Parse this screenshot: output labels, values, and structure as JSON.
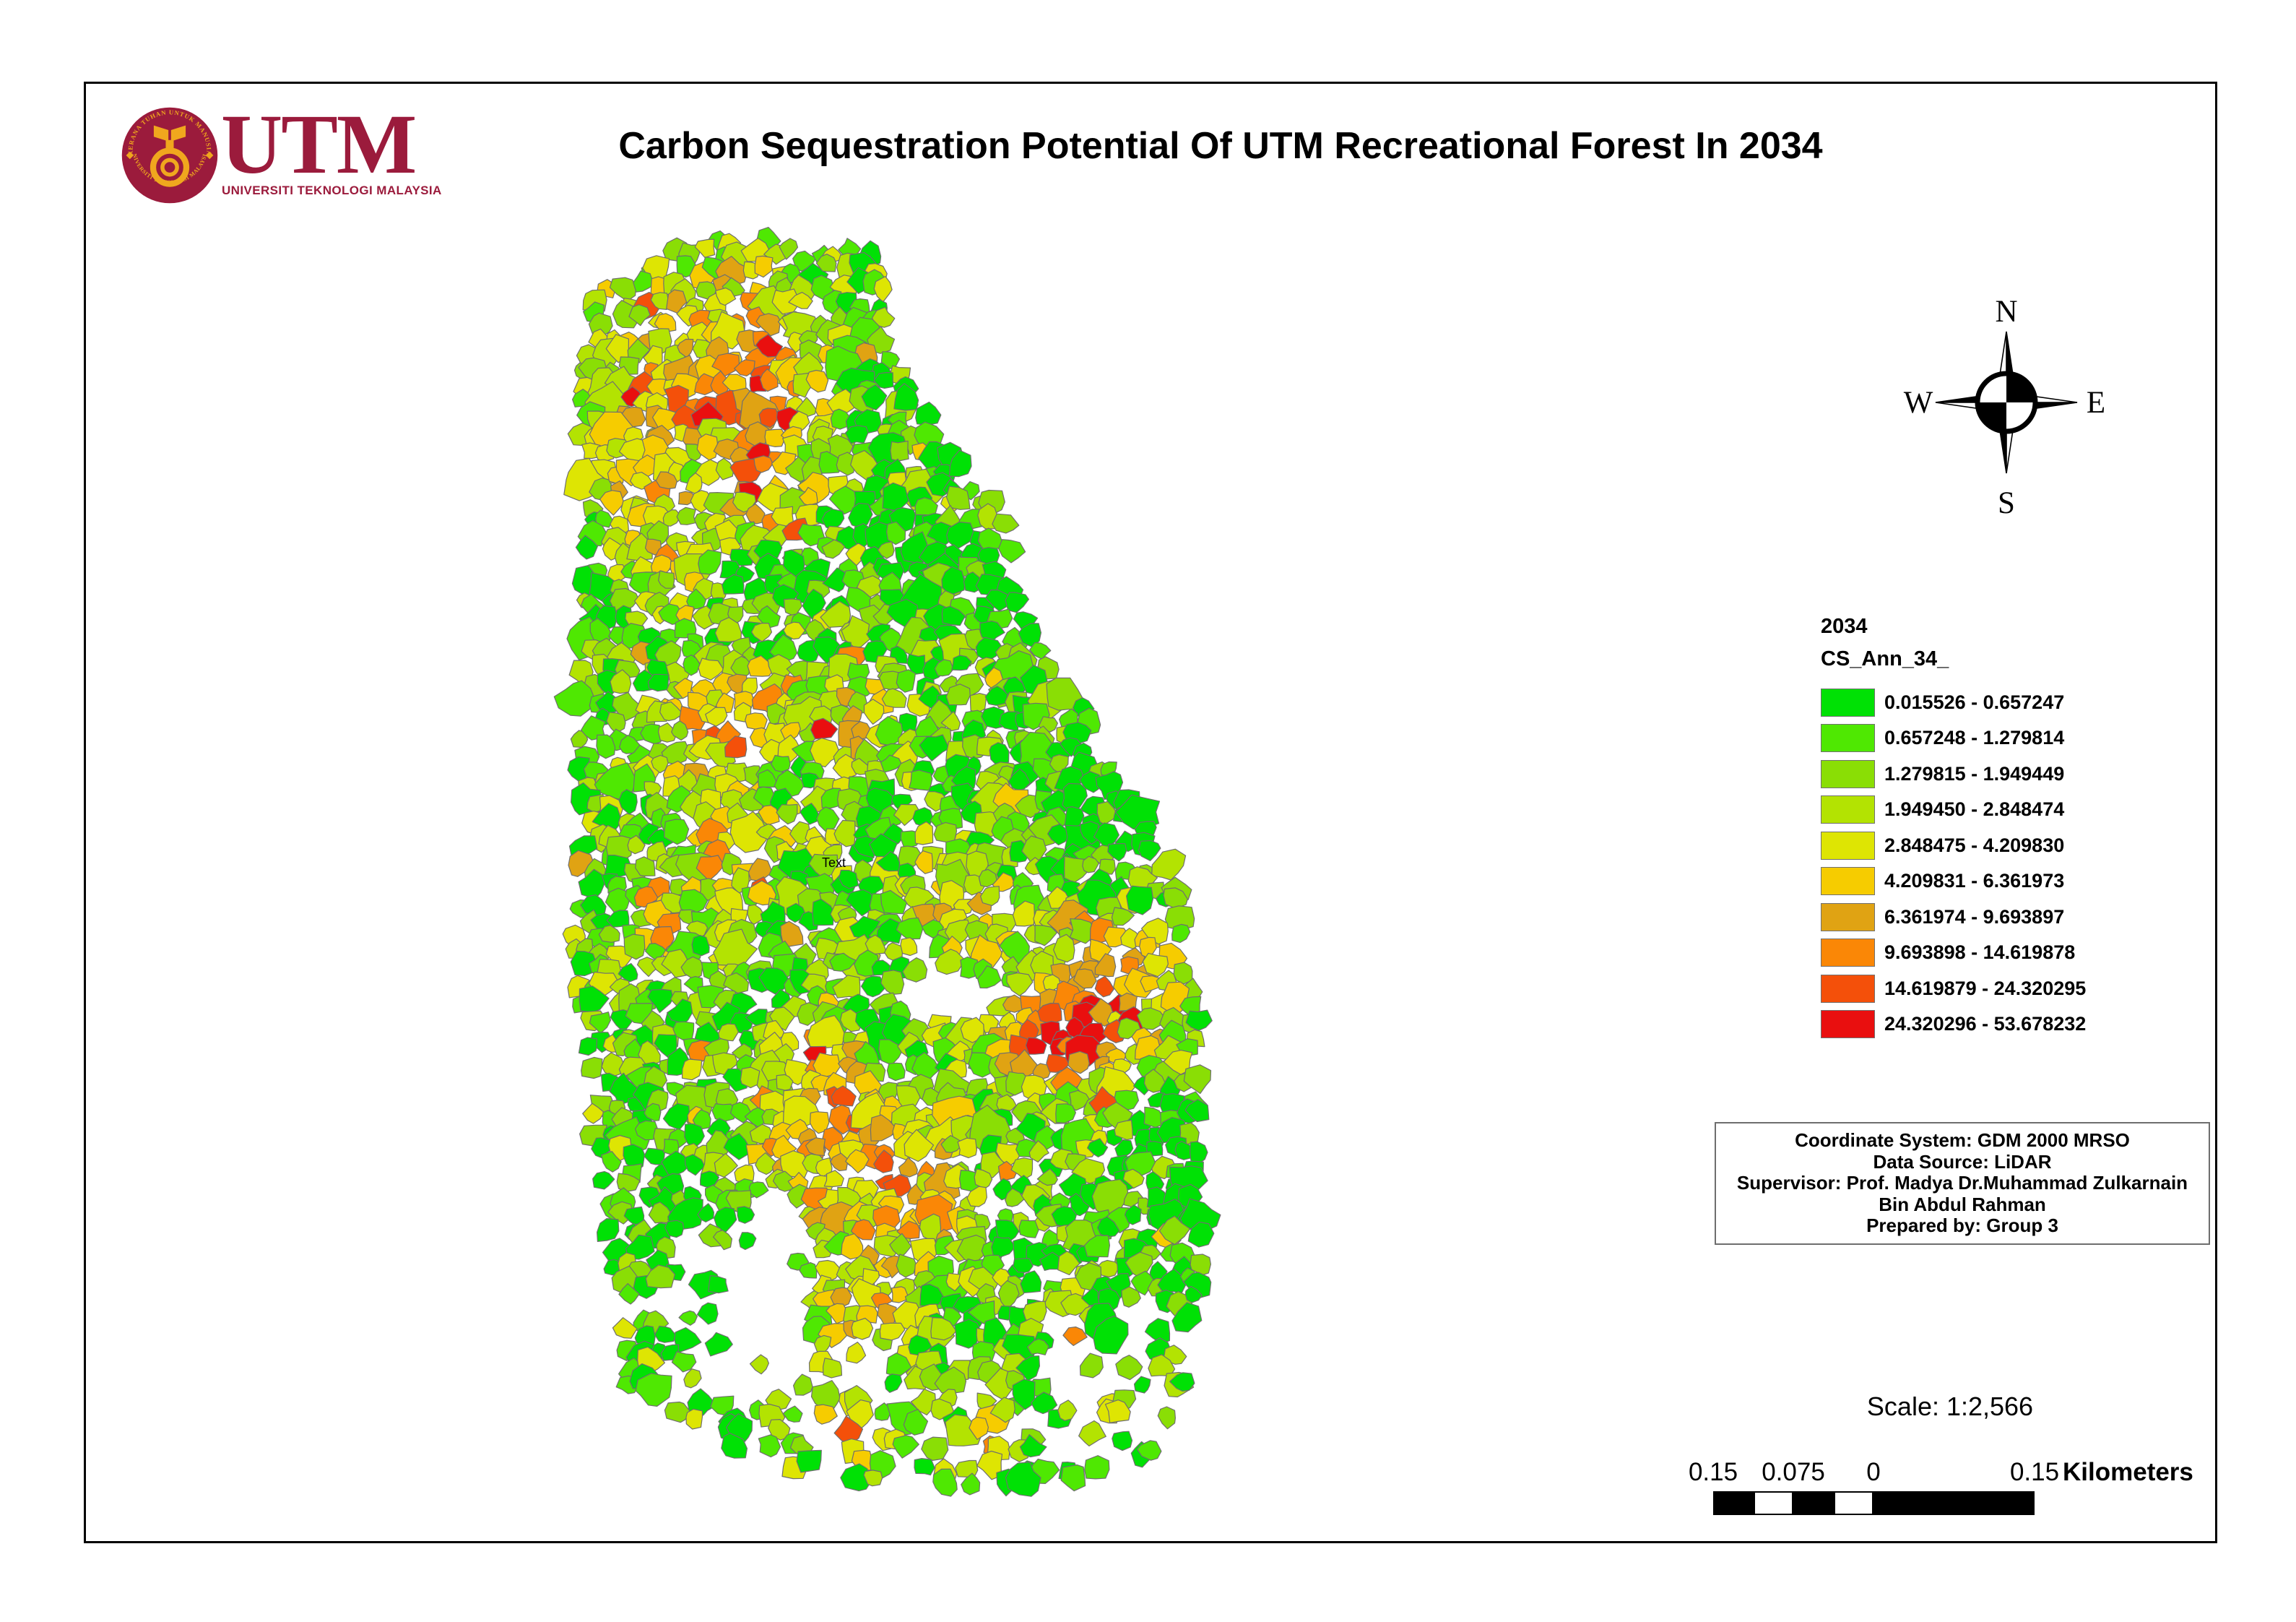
{
  "header": {
    "title": "Carbon Sequestration Potential Of UTM Recreational Forest In 2034"
  },
  "logo": {
    "acronym": "UTM",
    "name_line": "UNIVERSITI TEKNOLOGI MALAYSIA",
    "seal_text_top": "KERANA TUHAN UNTUK MANUSIA",
    "seal_text_bottom": "UNIVERSITI TEKNOLOGI MALAYSIA",
    "maroon": "#9B1B3C",
    "gold": "#F0A71E"
  },
  "compass": {
    "north": "N",
    "east": "E",
    "south": "S",
    "west": "W"
  },
  "legend": {
    "year_label": "2034",
    "field_label": "CS_Ann_34_",
    "classes": [
      {
        "label": "0.015526 - 0.657247",
        "color": "#00E105"
      },
      {
        "label": "0.657248 - 1.279814",
        "color": "#4FE802"
      },
      {
        "label": "1.279815 - 1.949449",
        "color": "#8ADE05"
      },
      {
        "label": "1.949450 - 2.848474",
        "color": "#B3E302"
      },
      {
        "label": "2.848475 - 4.209830",
        "color": "#DEE503"
      },
      {
        "label": "4.209831 - 6.361973",
        "color": "#F6CC00"
      },
      {
        "label": "6.361974 - 9.693897",
        "color": "#E0A313"
      },
      {
        "label": "9.693898 - 14.619878",
        "color": "#FA8706"
      },
      {
        "label": "14.619879 - 24.320295",
        "color": "#F4500A"
      },
      {
        "label": "24.320296 - 53.678232",
        "color": "#E90F0F"
      }
    ]
  },
  "info_box": {
    "lines": [
      "Coordinate System: GDM 2000 MRSO",
      "Data Source: LiDAR",
      "Supervisor: Prof. Madya Dr.Muhammad Zulkarnain",
      "Bin Abdul Rahman",
      "Prepared by: Group 3"
    ]
  },
  "scale": {
    "text": "Scale: 1:2,566",
    "bar_labels": [
      "0.15",
      "0.075",
      "0",
      "0.15"
    ],
    "bar_label_x": [
      2372,
      2483,
      2594,
      2817
    ],
    "bar_segments": [
      [
        56,
        "#000000"
      ],
      [
        55,
        "#ffffff"
      ],
      [
        56,
        "#000000"
      ],
      [
        55,
        "#ffffff"
      ],
      [
        223,
        "#000000"
      ]
    ],
    "unit_label": "Kilometers"
  },
  "map": {
    "annotation": "Text",
    "stroke": "#6F6F6F",
    "seed": 11,
    "spacing": 23,
    "jitter": 9,
    "dropout": 0.03,
    "outline": [
      [
        830,
        400
      ],
      [
        850,
        372
      ],
      [
        872,
        380
      ],
      [
        895,
        355
      ],
      [
        920,
        362
      ],
      [
        948,
        338
      ],
      [
        972,
        346
      ],
      [
        998,
        328
      ],
      [
        1022,
        340
      ],
      [
        1046,
        320
      ],
      [
        1072,
        334
      ],
      [
        1098,
        324
      ],
      [
        1124,
        338
      ],
      [
        1150,
        328
      ],
      [
        1175,
        342
      ],
      [
        1200,
        334
      ],
      [
        1208,
        362
      ],
      [
        1222,
        392
      ],
      [
        1230,
        430
      ],
      [
        1244,
        468
      ],
      [
        1240,
        508
      ],
      [
        1266,
        545
      ],
      [
        1288,
        580
      ],
      [
        1310,
        610
      ],
      [
        1338,
        640
      ],
      [
        1360,
        662
      ],
      [
        1378,
        700
      ],
      [
        1398,
        735
      ],
      [
        1410,
        790
      ],
      [
        1432,
        848
      ],
      [
        1428,
        872
      ],
      [
        1467,
        920
      ],
      [
        1500,
        968
      ],
      [
        1522,
        1020
      ],
      [
        1545,
        1078
      ],
      [
        1585,
        1132
      ],
      [
        1615,
        1190
      ],
      [
        1635,
        1248
      ],
      [
        1645,
        1300
      ],
      [
        1652,
        1352
      ],
      [
        1662,
        1404
      ],
      [
        1668,
        1460
      ],
      [
        1672,
        1520
      ],
      [
        1666,
        1578
      ],
      [
        1660,
        1640
      ],
      [
        1665,
        1700
      ],
      [
        1672,
        1755
      ],
      [
        1662,
        1810
      ],
      [
        1650,
        1855
      ],
      [
        1660,
        1900
      ],
      [
        1630,
        1942
      ],
      [
        1610,
        1990
      ],
      [
        1585,
        2035
      ],
      [
        1555,
        2012
      ],
      [
        1530,
        2062
      ],
      [
        1505,
        2032
      ],
      [
        1478,
        2068
      ],
      [
        1448,
        2040
      ],
      [
        1418,
        2072
      ],
      [
        1385,
        2046
      ],
      [
        1352,
        2076
      ],
      [
        1320,
        2048
      ],
      [
        1290,
        2072
      ],
      [
        1258,
        2050
      ],
      [
        1228,
        2070
      ],
      [
        1196,
        2040
      ],
      [
        1168,
        2066
      ],
      [
        1140,
        2030
      ],
      [
        1112,
        2056
      ],
      [
        1085,
        2020
      ],
      [
        1058,
        2042
      ],
      [
        1035,
        2000
      ],
      [
        1008,
        2016
      ],
      [
        985,
        1982
      ],
      [
        958,
        1996
      ],
      [
        935,
        1958
      ],
      [
        910,
        1968
      ],
      [
        890,
        1936
      ],
      [
        872,
        1942
      ],
      [
        860,
        1906
      ],
      [
        868,
        1870
      ],
      [
        848,
        1840
      ],
      [
        862,
        1800
      ],
      [
        842,
        1768
      ],
      [
        855,
        1735
      ],
      [
        838,
        1700
      ],
      [
        846,
        1668
      ],
      [
        830,
        1636
      ],
      [
        822,
        1592
      ],
      [
        812,
        1540
      ],
      [
        816,
        1488
      ],
      [
        806,
        1436
      ],
      [
        800,
        1384
      ],
      [
        795,
        1330
      ],
      [
        792,
        1276
      ],
      [
        795,
        1222
      ],
      [
        799,
        1168
      ],
      [
        803,
        1114
      ],
      [
        797,
        1060
      ],
      [
        801,
        1006
      ],
      [
        794,
        952
      ],
      [
        800,
        898
      ],
      [
        796,
        844
      ],
      [
        803,
        790
      ],
      [
        798,
        736
      ],
      [
        804,
        682
      ],
      [
        799,
        628
      ],
      [
        806,
        574
      ],
      [
        801,
        520
      ],
      [
        812,
        478
      ],
      [
        806,
        438
      ],
      [
        818,
        415
      ]
    ],
    "holes": [
      [
        1308,
        1378,
        72,
        34
      ],
      [
        1048,
        1795,
        55,
        70
      ],
      [
        1078,
        1695,
        38,
        42
      ]
    ],
    "sparse_zones": [
      [
        960,
        1720,
        1120,
        1935,
        0.72
      ],
      [
        1440,
        1800,
        1700,
        2075,
        0.58
      ],
      [
        900,
        1850,
        1255,
        2075,
        0.42
      ],
      [
        1255,
        1905,
        1460,
        2080,
        0.38
      ],
      [
        828,
        1640,
        975,
        1850,
        0.22
      ]
    ],
    "hotspots": [
      [
        1000,
        420,
        80,
        0.5
      ],
      [
        900,
        480,
        55,
        0.5
      ],
      [
        1052,
        478,
        40,
        0.95
      ],
      [
        1058,
        580,
        38,
        1.25
      ],
      [
        1065,
        675,
        42,
        1.0
      ],
      [
        956,
        566,
        30,
        1.15
      ],
      [
        872,
        560,
        26,
        0.85
      ],
      [
        872,
        650,
        42,
        0.75
      ],
      [
        915,
        790,
        45,
        0.55
      ],
      [
        950,
        700,
        55,
        0.4
      ],
      [
        1138,
        522,
        26,
        0.7
      ],
      [
        985,
        1012,
        48,
        1.05
      ],
      [
        1052,
        948,
        28,
        0.7
      ],
      [
        1165,
        1010,
        45,
        0.75
      ],
      [
        1015,
        1168,
        48,
        0.9
      ],
      [
        915,
        1258,
        38,
        0.7
      ],
      [
        1330,
        1240,
        45,
        0.75
      ],
      [
        1495,
        1390,
        90,
        0.95
      ],
      [
        1465,
        1428,
        40,
        1.1
      ],
      [
        1555,
        1330,
        45,
        0.8
      ],
      [
        1130,
        1450,
        28,
        0.95
      ],
      [
        1120,
        1580,
        80,
        0.5
      ],
      [
        1150,
        1520,
        70,
        0.45
      ],
      [
        1220,
        1620,
        70,
        0.45
      ],
      [
        1270,
        1660,
        60,
        0.5
      ],
      [
        1190,
        1790,
        40,
        0.75
      ],
      [
        1080,
        1890,
        40,
        0.6
      ],
      [
        1172,
        1975,
        30,
        1.3
      ],
      [
        1375,
        2000,
        30,
        0.95
      ]
    ],
    "coldspots": [
      [
        930,
        1630,
        80
      ],
      [
        1555,
        1105,
        125
      ],
      [
        1430,
        820,
        90
      ],
      [
        1640,
        1760,
        90
      ],
      [
        1655,
        1580,
        70
      ]
    ]
  }
}
